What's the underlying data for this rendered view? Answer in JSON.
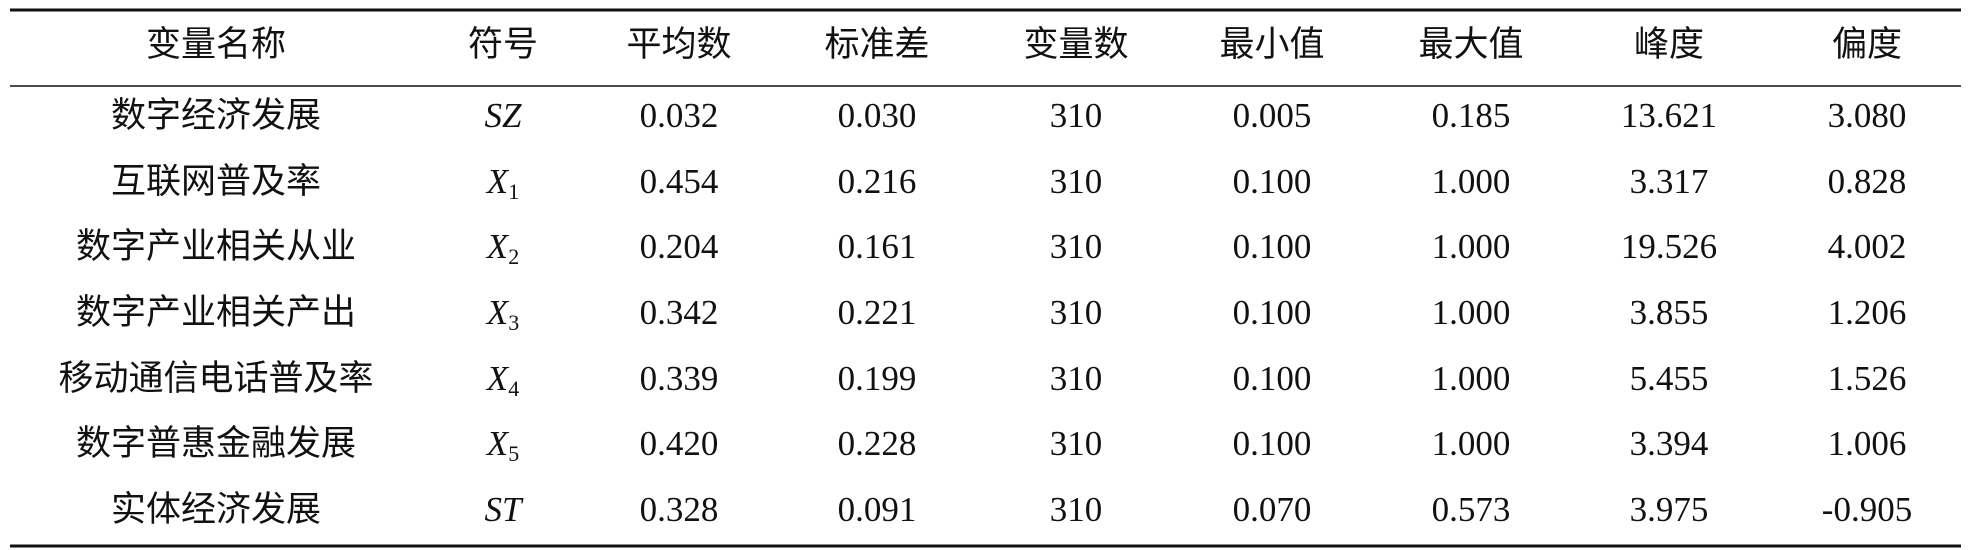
{
  "table": {
    "header": [
      "变量名称",
      "符号",
      "平均数",
      "标准差",
      "变量数",
      "最小值",
      "最大值",
      "峰度",
      "偏度"
    ],
    "rows": [
      {
        "name": "数字经济发展",
        "symbol": "SZ",
        "values": [
          "0.032",
          "0.030",
          "310",
          "0.005",
          "0.185",
          "13.621",
          "3.080"
        ]
      },
      {
        "name": "互联网普及率",
        "symbol": "X",
        "symbol_sub": "1",
        "values": [
          "0.454",
          "0.216",
          "310",
          "0.100",
          "1.000",
          "3.317",
          "0.828"
        ]
      },
      {
        "name": "数字产业相关从业",
        "symbol": "X",
        "symbol_sub": "2",
        "values": [
          "0.204",
          "0.161",
          "310",
          "0.100",
          "1.000",
          "19.526",
          "4.002"
        ]
      },
      {
        "name": "数字产业相关产出",
        "symbol": "X",
        "symbol_sub": "3",
        "values": [
          "0.342",
          "0.221",
          "310",
          "0.100",
          "1.000",
          "3.855",
          "1.206"
        ]
      },
      {
        "name": "移动通信电话普及率",
        "symbol": "X",
        "symbol_sub": "4",
        "values": [
          "0.339",
          "0.199",
          "310",
          "0.100",
          "1.000",
          "5.455",
          "1.526"
        ]
      },
      {
        "name": "数字普惠金融发展",
        "symbol": "X",
        "symbol_sub": "5",
        "values": [
          "0.420",
          "0.228",
          "310",
          "0.100",
          "1.000",
          "3.394",
          "1.006"
        ]
      },
      {
        "name": "实体经济发展",
        "symbol": "ST",
        "values": [
          "0.328",
          "0.091",
          "310",
          "0.070",
          "0.573",
          "3.975",
          "-0.905"
        ]
      }
    ]
  }
}
